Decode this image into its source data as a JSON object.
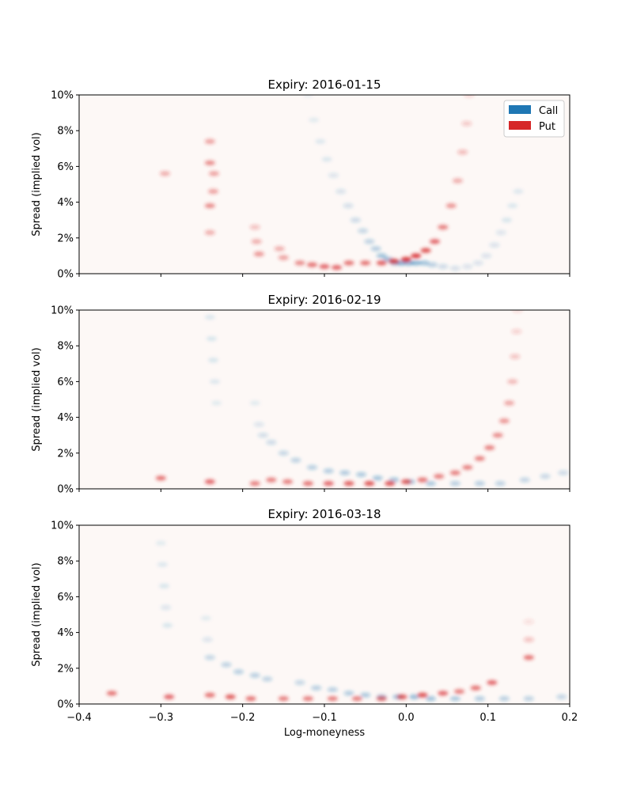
{
  "chart_data": [
    {
      "type": "heatmap",
      "title": "Expiry: 2016-01-15",
      "xlabel": "",
      "ylabel": "Spread (implied vol)",
      "xlim": [
        -0.4,
        0.2
      ],
      "ylim": [
        0,
        10
      ],
      "xticks": [
        "−0.4",
        "−0.3",
        "−0.2",
        "−0.1",
        "0.0",
        "0.1",
        "0.2"
      ],
      "yticks": [
        "0%",
        "2%",
        "4%",
        "6%",
        "8%",
        "10%"
      ],
      "show_xtick_labels": false,
      "legend": {
        "placement": "top-right",
        "entries": [
          {
            "label": "Call",
            "color": "#1f77b4"
          },
          {
            "label": "Put",
            "color": "#d62728"
          }
        ]
      },
      "series": [
        {
          "name": "Call",
          "color": "#1f77b4",
          "points": [
            [
              -0.12,
              10.0,
              0.08
            ],
            [
              -0.113,
              8.6,
              0.1
            ],
            [
              -0.105,
              7.4,
              0.12
            ],
            [
              -0.097,
              6.4,
              0.13
            ],
            [
              -0.089,
              5.5,
              0.15
            ],
            [
              -0.08,
              4.6,
              0.17
            ],
            [
              -0.071,
              3.8,
              0.19
            ],
            [
              -0.062,
              3.0,
              0.22
            ],
            [
              -0.053,
              2.4,
              0.25
            ],
            [
              -0.045,
              1.8,
              0.28
            ],
            [
              -0.037,
              1.4,
              0.32
            ],
            [
              -0.03,
              1.0,
              0.4
            ],
            [
              -0.022,
              0.8,
              0.45
            ],
            [
              -0.014,
              0.6,
              0.5
            ],
            [
              -0.006,
              0.6,
              0.55
            ],
            [
              0.003,
              0.6,
              0.55
            ],
            [
              0.012,
              0.6,
              0.5
            ],
            [
              0.022,
              0.6,
              0.4
            ],
            [
              0.032,
              0.5,
              0.3
            ],
            [
              0.045,
              0.4,
              0.22
            ],
            [
              0.06,
              0.3,
              0.18
            ],
            [
              0.075,
              0.4,
              0.16
            ],
            [
              0.088,
              0.6,
              0.16
            ],
            [
              0.098,
              1.0,
              0.16
            ],
            [
              0.108,
              1.6,
              0.16
            ],
            [
              0.116,
              2.3,
              0.15
            ],
            [
              0.123,
              3.0,
              0.14
            ],
            [
              0.13,
              3.8,
              0.13
            ],
            [
              0.137,
              4.6,
              0.12
            ]
          ]
        },
        {
          "name": "Put",
          "color": "#d62728",
          "points": [
            [
              -0.295,
              5.6,
              0.35
            ],
            [
              -0.24,
              7.4,
              0.4
            ],
            [
              -0.24,
              6.2,
              0.5
            ],
            [
              -0.235,
              5.6,
              0.4
            ],
            [
              -0.236,
              4.6,
              0.4
            ],
            [
              -0.24,
              3.8,
              0.5
            ],
            [
              -0.24,
              2.3,
              0.35
            ],
            [
              -0.185,
              2.6,
              0.25
            ],
            [
              -0.183,
              1.8,
              0.35
            ],
            [
              -0.18,
              1.1,
              0.45
            ],
            [
              -0.155,
              1.4,
              0.35
            ],
            [
              -0.15,
              0.9,
              0.4
            ],
            [
              -0.13,
              0.6,
              0.5
            ],
            [
              -0.115,
              0.5,
              0.6
            ],
            [
              -0.1,
              0.4,
              0.65
            ],
            [
              -0.085,
              0.35,
              0.65
            ],
            [
              -0.07,
              0.6,
              0.6
            ],
            [
              -0.05,
              0.6,
              0.6
            ],
            [
              -0.03,
              0.6,
              0.7
            ],
            [
              -0.015,
              0.7,
              0.8
            ],
            [
              0.0,
              0.8,
              0.9
            ],
            [
              0.012,
              1.0,
              0.85
            ],
            [
              0.024,
              1.3,
              0.75
            ],
            [
              0.035,
              1.8,
              0.65
            ],
            [
              0.045,
              2.6,
              0.55
            ],
            [
              0.055,
              3.8,
              0.45
            ],
            [
              0.063,
              5.2,
              0.35
            ],
            [
              0.069,
              6.8,
              0.28
            ],
            [
              0.074,
              8.4,
              0.22
            ],
            [
              0.077,
              10.0,
              0.16
            ]
          ]
        }
      ]
    },
    {
      "type": "heatmap",
      "title": "Expiry: 2016-02-19",
      "xlabel": "",
      "ylabel": "Spread (implied vol)",
      "xlim": [
        -0.4,
        0.2
      ],
      "ylim": [
        0,
        10
      ],
      "xticks": [
        "−0.4",
        "−0.3",
        "−0.2",
        "−0.1",
        "0.0",
        "0.1",
        "0.2"
      ],
      "yticks": [
        "0%",
        "2%",
        "4%",
        "6%",
        "8%",
        "10%"
      ],
      "show_xtick_labels": false,
      "legend": null,
      "series": [
        {
          "name": "Call",
          "color": "#1f77b4",
          "points": [
            [
              -0.24,
              9.6,
              0.12
            ],
            [
              -0.238,
              8.4,
              0.14
            ],
            [
              -0.236,
              7.2,
              0.14
            ],
            [
              -0.234,
              6.0,
              0.12
            ],
            [
              -0.232,
              4.8,
              0.1
            ],
            [
              -0.185,
              4.8,
              0.1
            ],
            [
              -0.18,
              3.6,
              0.15
            ],
            [
              -0.175,
              3.0,
              0.2
            ],
            [
              -0.165,
              2.6,
              0.22
            ],
            [
              -0.15,
              2.0,
              0.25
            ],
            [
              -0.135,
              1.6,
              0.28
            ],
            [
              -0.115,
              1.2,
              0.3
            ],
            [
              -0.095,
              1.0,
              0.32
            ],
            [
              -0.075,
              0.9,
              0.33
            ],
            [
              -0.055,
              0.8,
              0.35
            ],
            [
              -0.035,
              0.6,
              0.38
            ],
            [
              -0.015,
              0.5,
              0.4
            ],
            [
              0.005,
              0.4,
              0.4
            ],
            [
              0.03,
              0.3,
              0.35
            ],
            [
              0.06,
              0.3,
              0.3
            ],
            [
              0.09,
              0.3,
              0.3
            ],
            [
              0.115,
              0.3,
              0.28
            ],
            [
              0.145,
              0.5,
              0.26
            ],
            [
              0.17,
              0.7,
              0.24
            ],
            [
              0.192,
              0.9,
              0.22
            ]
          ]
        },
        {
          "name": "Put",
          "color": "#d62728",
          "points": [
            [
              -0.3,
              0.6,
              0.6
            ],
            [
              -0.24,
              0.4,
              0.65
            ],
            [
              -0.185,
              0.3,
              0.55
            ],
            [
              -0.165,
              0.5,
              0.55
            ],
            [
              -0.145,
              0.4,
              0.55
            ],
            [
              -0.12,
              0.3,
              0.6
            ],
            [
              -0.095,
              0.3,
              0.65
            ],
            [
              -0.07,
              0.3,
              0.7
            ],
            [
              -0.045,
              0.3,
              0.75
            ],
            [
              -0.02,
              0.3,
              0.75
            ],
            [
              0.0,
              0.4,
              0.7
            ],
            [
              0.02,
              0.5,
              0.6
            ],
            [
              0.04,
              0.7,
              0.55
            ],
            [
              0.06,
              0.9,
              0.55
            ],
            [
              0.075,
              1.2,
              0.55
            ],
            [
              0.09,
              1.7,
              0.55
            ],
            [
              0.102,
              2.3,
              0.55
            ],
            [
              0.112,
              3.0,
              0.5
            ],
            [
              0.12,
              3.8,
              0.45
            ],
            [
              0.126,
              4.8,
              0.38
            ],
            [
              0.13,
              6.0,
              0.3
            ],
            [
              0.133,
              7.4,
              0.24
            ],
            [
              0.135,
              8.8,
              0.18
            ],
            [
              0.136,
              10.0,
              0.14
            ]
          ]
        }
      ]
    },
    {
      "type": "heatmap",
      "title": "Expiry: 2016-03-18",
      "xlabel": "Log-moneyness",
      "ylabel": "Spread (implied vol)",
      "xlim": [
        -0.4,
        0.2
      ],
      "ylim": [
        0,
        10
      ],
      "xticks": [
        "−0.4",
        "−0.3",
        "−0.2",
        "−0.1",
        "0.0",
        "0.1",
        "0.2"
      ],
      "yticks": [
        "0%",
        "2%",
        "4%",
        "6%",
        "8%",
        "10%"
      ],
      "show_xtick_labels": true,
      "legend": null,
      "series": [
        {
          "name": "Call",
          "color": "#1f77b4",
          "points": [
            [
              -0.3,
              9.0,
              0.1
            ],
            [
              -0.298,
              7.8,
              0.12
            ],
            [
              -0.296,
              6.6,
              0.14
            ],
            [
              -0.294,
              5.4,
              0.15
            ],
            [
              -0.292,
              4.4,
              0.14
            ],
            [
              -0.245,
              4.8,
              0.1
            ],
            [
              -0.243,
              3.6,
              0.15
            ],
            [
              -0.24,
              2.6,
              0.25
            ],
            [
              -0.22,
              2.2,
              0.28
            ],
            [
              -0.205,
              1.8,
              0.3
            ],
            [
              -0.185,
              1.6,
              0.3
            ],
            [
              -0.17,
              1.4,
              0.28
            ],
            [
              -0.13,
              1.2,
              0.25
            ],
            [
              -0.11,
              0.9,
              0.3
            ],
            [
              -0.09,
              0.8,
              0.3
            ],
            [
              -0.07,
              0.6,
              0.32
            ],
            [
              -0.05,
              0.5,
              0.35
            ],
            [
              -0.03,
              0.4,
              0.4
            ],
            [
              -0.01,
              0.4,
              0.45
            ],
            [
              0.01,
              0.4,
              0.45
            ],
            [
              0.03,
              0.3,
              0.4
            ],
            [
              0.06,
              0.3,
              0.35
            ],
            [
              0.09,
              0.3,
              0.32
            ],
            [
              0.12,
              0.3,
              0.3
            ],
            [
              0.15,
              0.3,
              0.28
            ],
            [
              0.19,
              0.4,
              0.26
            ]
          ]
        },
        {
          "name": "Put",
          "color": "#d62728",
          "points": [
            [
              -0.36,
              0.6,
              0.6
            ],
            [
              -0.29,
              0.4,
              0.65
            ],
            [
              -0.24,
              0.5,
              0.6
            ],
            [
              -0.215,
              0.4,
              0.7
            ],
            [
              -0.19,
              0.3,
              0.6
            ],
            [
              -0.15,
              0.3,
              0.55
            ],
            [
              -0.12,
              0.3,
              0.55
            ],
            [
              -0.09,
              0.3,
              0.55
            ],
            [
              -0.06,
              0.3,
              0.55
            ],
            [
              -0.03,
              0.3,
              0.6
            ],
            [
              -0.005,
              0.4,
              0.7
            ],
            [
              0.02,
              0.5,
              0.75
            ],
            [
              0.045,
              0.6,
              0.65
            ],
            [
              0.065,
              0.7,
              0.55
            ],
            [
              0.085,
              0.9,
              0.6
            ],
            [
              0.105,
              1.2,
              0.65
            ],
            [
              0.15,
              2.6,
              0.6
            ],
            [
              0.15,
              3.6,
              0.25
            ],
            [
              0.15,
              4.6,
              0.12
            ]
          ]
        }
      ]
    }
  ]
}
